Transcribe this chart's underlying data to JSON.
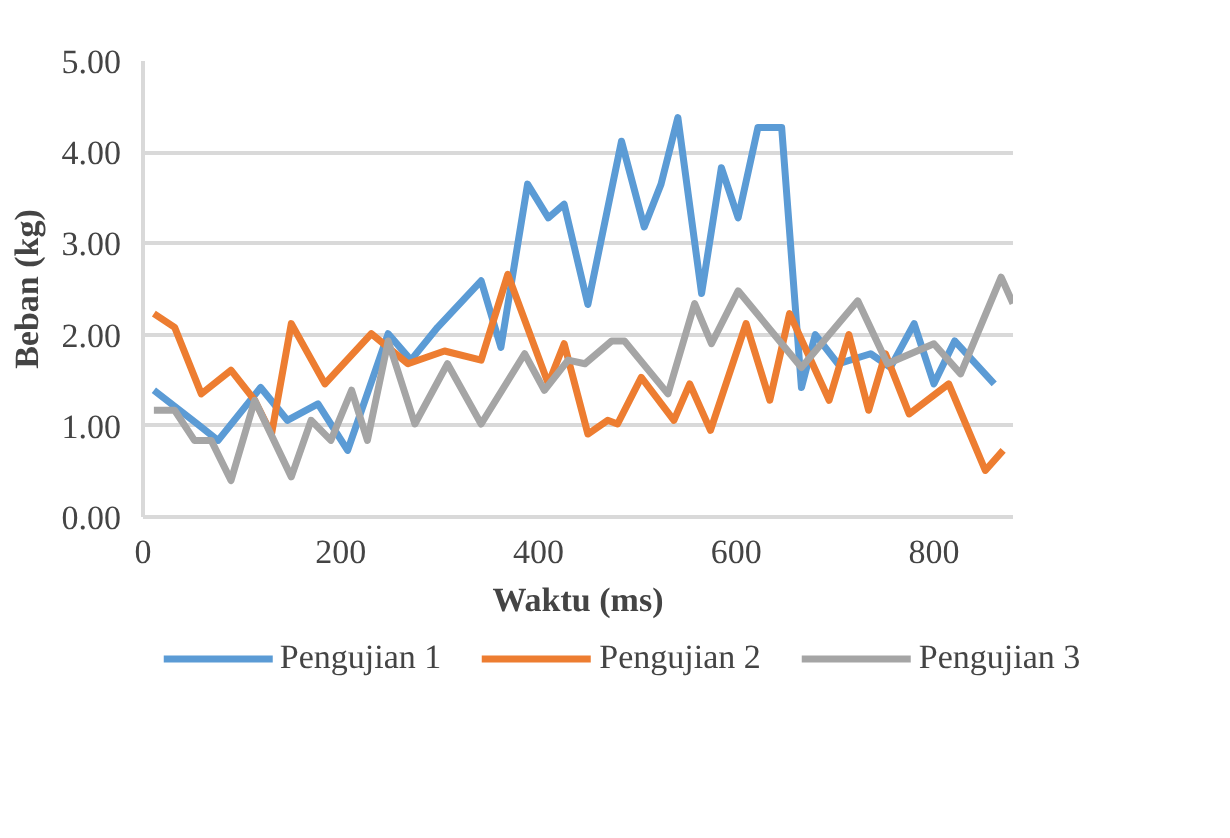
{
  "chart_data": {
    "type": "line",
    "xlabel": "Waktu (ms)",
    "ylabel": "Beban (kg)",
    "xlim": [
      0,
      880
    ],
    "xticks": [
      0,
      200,
      400,
      600,
      800
    ],
    "ylim": [
      0,
      5
    ],
    "yticks": [
      {
        "value": 0,
        "label": "0.00"
      },
      {
        "value": 1,
        "label": "1.00"
      },
      {
        "value": 2,
        "label": "2.00"
      },
      {
        "value": 3,
        "label": "3.00"
      },
      {
        "value": 4,
        "label": "4.00"
      },
      {
        "value": 5,
        "label": "5.00"
      }
    ],
    "grid": "y",
    "legend": "bottom",
    "marker": "none",
    "line_style": "solid",
    "series": [
      {
        "name": "Pengujian 1",
        "color": "#5b9bd5",
        "x": [
          11,
          55,
          76,
          119,
          146,
          177,
          207,
          248,
          271,
          298,
          342,
          362,
          389,
          410,
          426,
          450,
          484,
          507,
          524,
          541,
          565,
          585,
          602,
          622,
          646,
          666,
          680,
          703,
          736,
          756,
          780,
          800,
          821,
          861
        ],
        "values": [
          1.39,
          1.02,
          0.84,
          1.42,
          1.06,
          1.24,
          0.73,
          2.01,
          1.72,
          2.08,
          2.59,
          1.86,
          3.65,
          3.28,
          3.43,
          2.33,
          4.12,
          3.18,
          3.65,
          4.38,
          2.45,
          3.83,
          3.28,
          4.27,
          4.27,
          1.42,
          2.0,
          1.68,
          1.79,
          1.64,
          2.12,
          1.46,
          1.93,
          1.46
        ]
      },
      {
        "name": "Pengujian 2",
        "color": "#ed7d31",
        "x": [
          11,
          32,
          59,
          89,
          113,
          130,
          150,
          184,
          231,
          268,
          305,
          342,
          369,
          410,
          426,
          450,
          470,
          480,
          504,
          537,
          553,
          574,
          610,
          634,
          654,
          694,
          714,
          734,
          751,
          775,
          815,
          852,
          870
        ],
        "values": [
          2.23,
          2.08,
          1.35,
          1.61,
          1.28,
          0.91,
          2.12,
          1.46,
          2.01,
          1.68,
          1.82,
          1.72,
          2.66,
          1.46,
          1.9,
          0.91,
          1.06,
          1.02,
          1.53,
          1.06,
          1.46,
          0.95,
          2.12,
          1.28,
          2.23,
          1.28,
          2.0,
          1.17,
          1.79,
          1.13,
          1.46,
          0.51,
          0.73
        ]
      },
      {
        "name": "Pengujian 3",
        "color": "#a5a5a5",
        "x": [
          11,
          32,
          52,
          69,
          89,
          113,
          150,
          170,
          190,
          211,
          227,
          248,
          275,
          308,
          342,
          386,
          406,
          430,
          447,
          474,
          487,
          531,
          558,
          575,
          602,
          666,
          723,
          753,
          800,
          827,
          868,
          880
        ],
        "values": [
          1.17,
          1.17,
          0.84,
          0.84,
          0.4,
          1.28,
          0.44,
          1.06,
          0.84,
          1.39,
          0.84,
          1.93,
          1.02,
          1.68,
          1.02,
          1.79,
          1.39,
          1.72,
          1.68,
          1.93,
          1.93,
          1.35,
          2.34,
          1.9,
          2.48,
          1.64,
          2.37,
          1.68,
          1.9,
          1.57,
          2.63,
          2.34
        ]
      }
    ]
  }
}
